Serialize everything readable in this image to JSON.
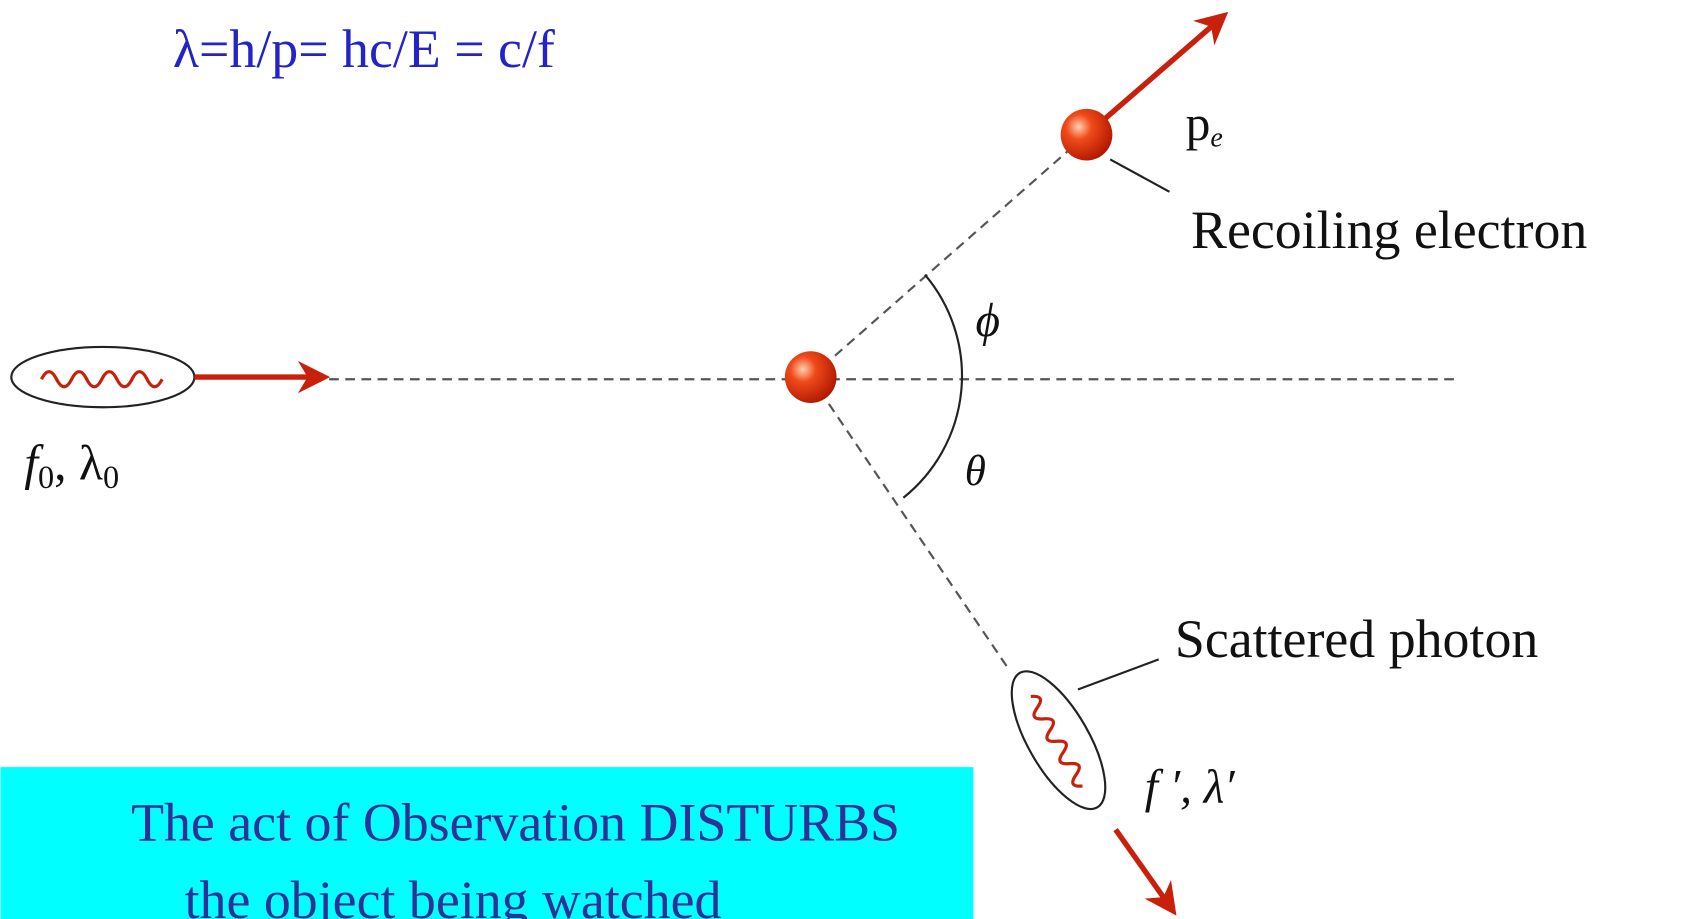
{
  "formula": "λ=h/p= hc/E = c/f",
  "electron_momentum": {
    "symbol": "p",
    "subscript": "e"
  },
  "recoil_label": "Recoiling electron",
  "phi": "ϕ",
  "theta": "θ",
  "incident_photon": {
    "f": "f",
    "f_sub": "0",
    "separator": ", λ",
    "lambda_sub": "0"
  },
  "scattered_label": "Scattered photon",
  "scattered_photon": "f ′, λ′",
  "caption": {
    "lines": [
      "The act of Observation DISTURBS",
      "the object being watched"
    ]
  }
}
